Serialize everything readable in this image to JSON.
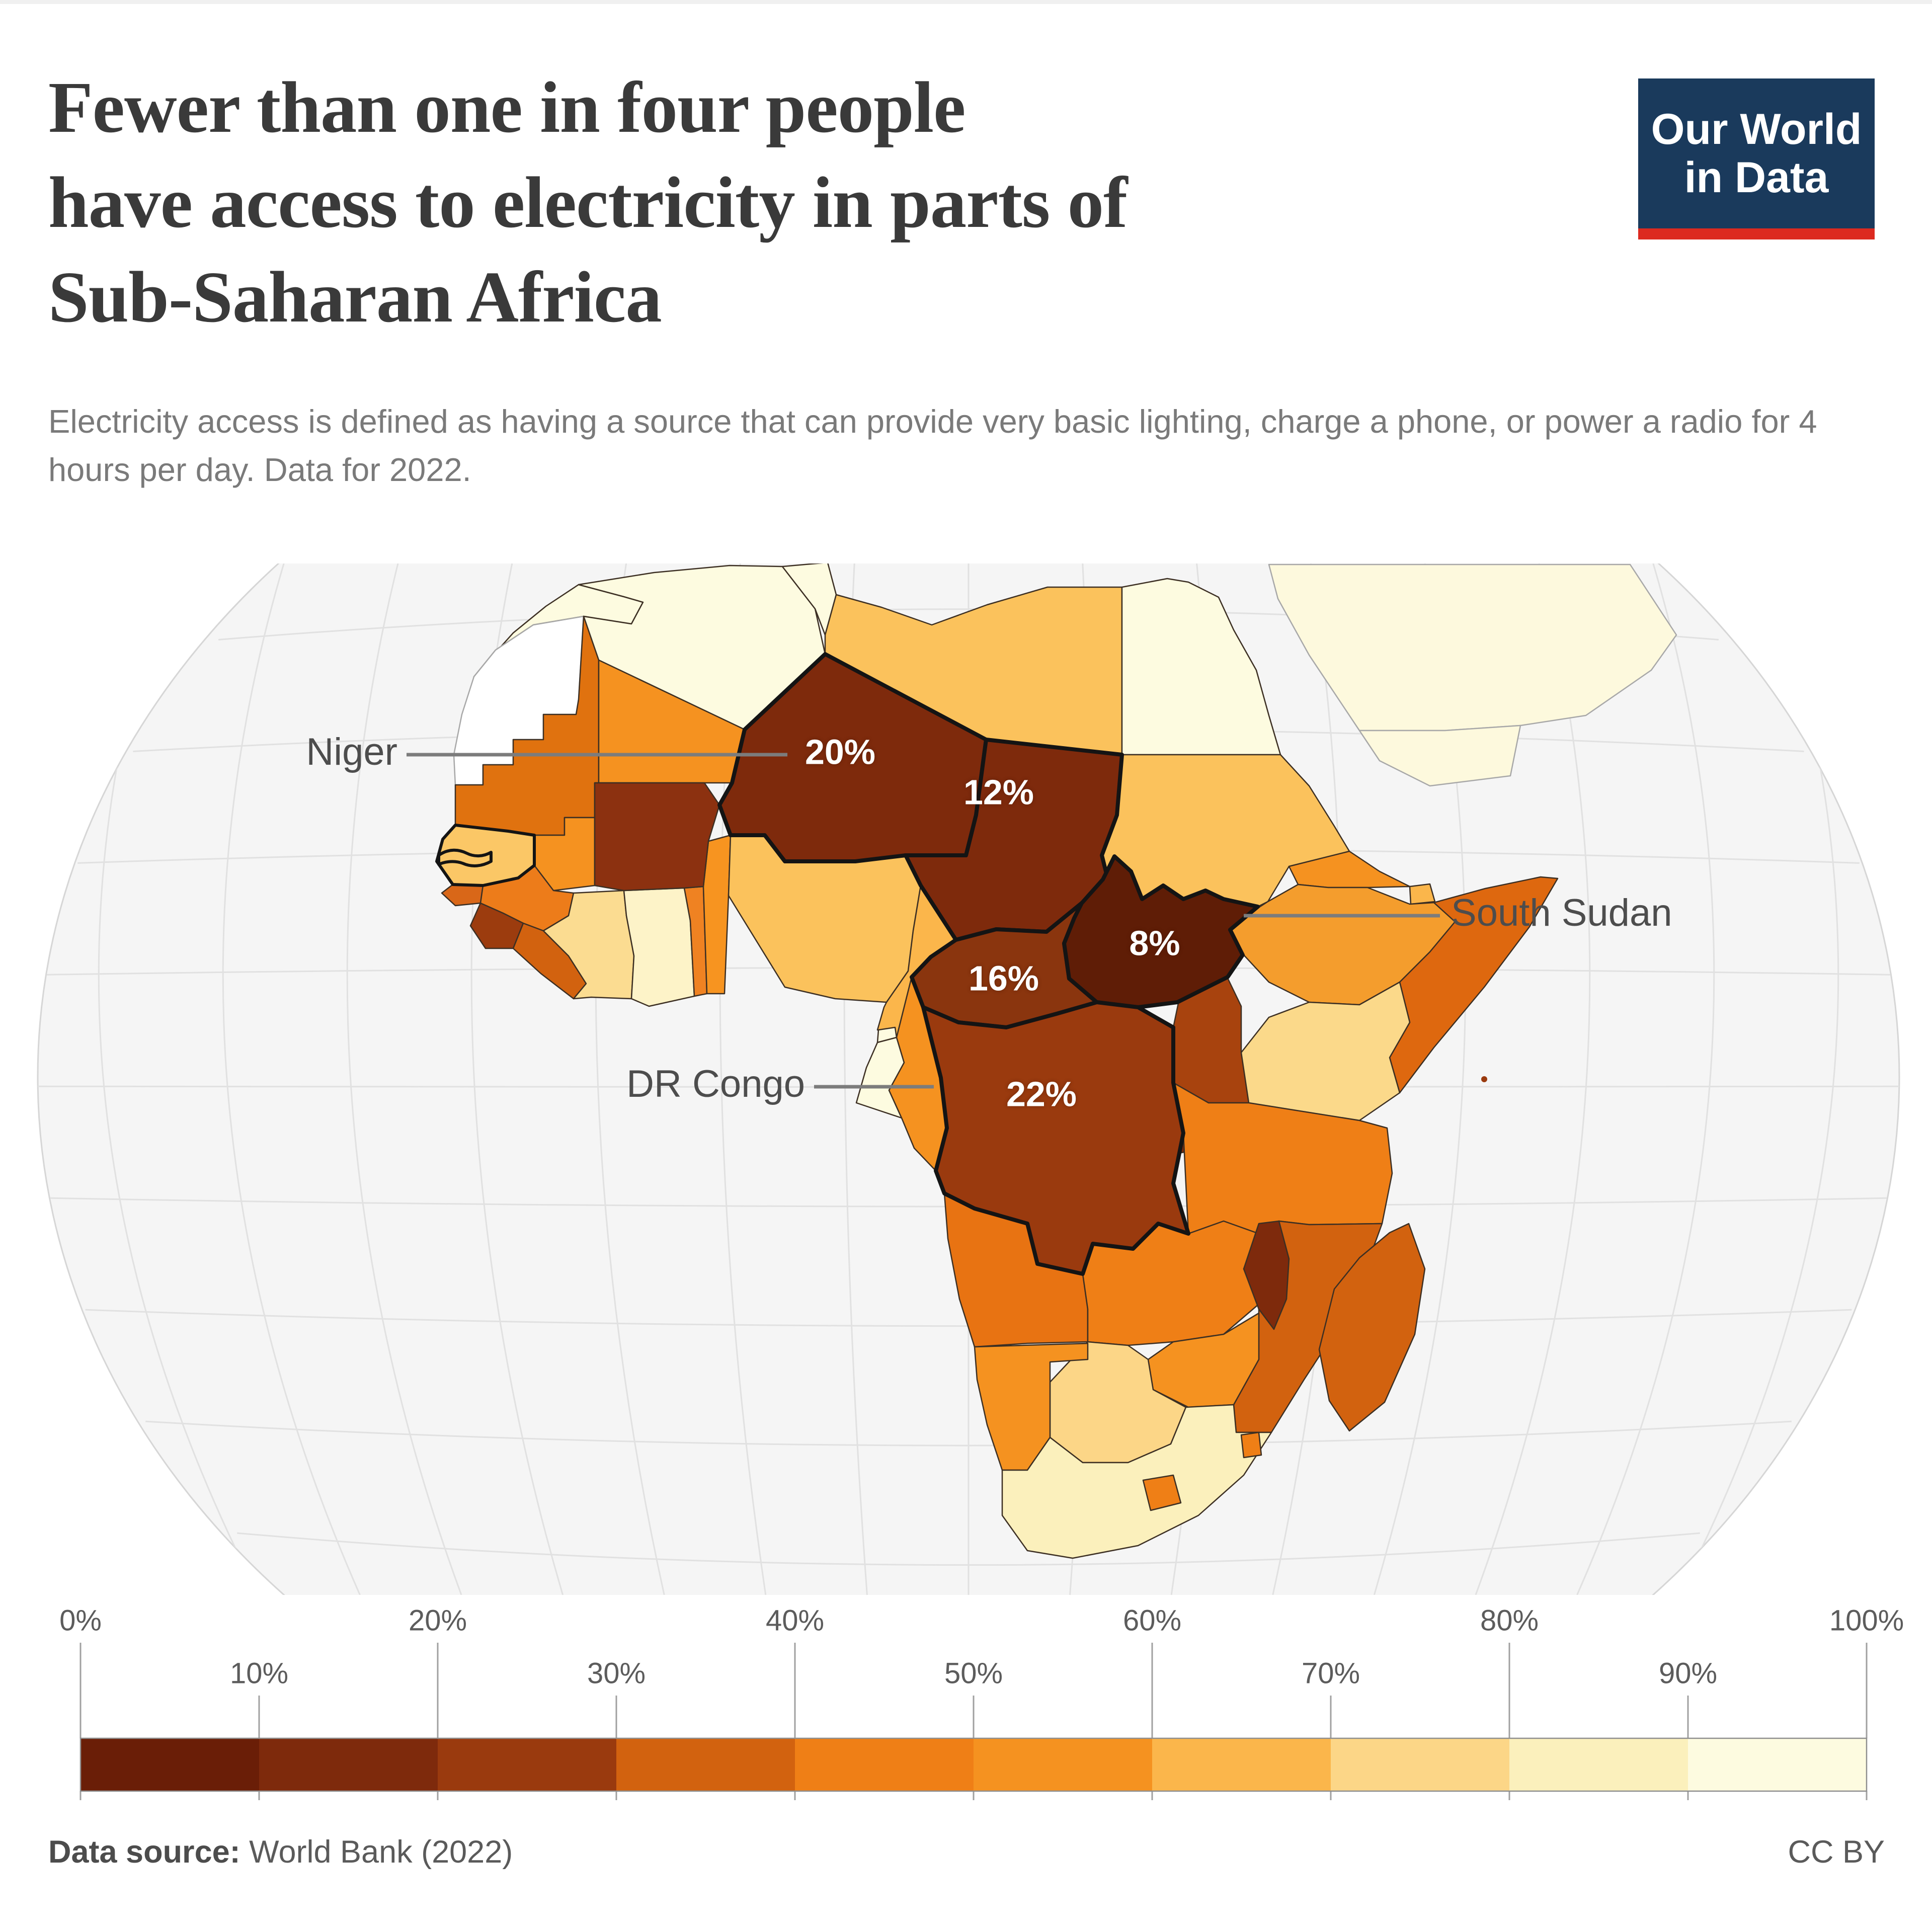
{
  "header": {
    "title_lines": [
      "Fewer than one in four people",
      "have access to electricity in parts of",
      "Sub-Saharan Africa"
    ],
    "subtitle": "Electricity access is defined as having a source that can provide very basic lighting, charge a phone, or power a radio for 4 hours per day. Data for 2022.",
    "logo": {
      "line1": "Our World",
      "line2": "in Data",
      "bg": "#1a3a5c",
      "accent": "#dc2a20"
    }
  },
  "chart_data": {
    "type": "choropleth_map",
    "region": "Africa",
    "metric": "Share of the population with access to electricity",
    "year": 2022,
    "unit": "%",
    "annotations": [
      {
        "country": "Niger",
        "value": "20%"
      },
      {
        "country": "Chad",
        "value": "12%"
      },
      {
        "country": "Central African Republic",
        "value": "16%"
      },
      {
        "country": "South Sudan",
        "value": "8%"
      },
      {
        "country": "DR Congo",
        "value": "22%"
      }
    ],
    "callouts": [
      {
        "label": "Niger"
      },
      {
        "label": "South Sudan"
      },
      {
        "label": "DR Congo"
      }
    ],
    "legend": {
      "ticks": [
        "0%",
        "10%",
        "20%",
        "30%",
        "40%",
        "50%",
        "60%",
        "70%",
        "80%",
        "90%",
        "100%"
      ],
      "colors": [
        "#6a1e07",
        "#7e2a0c",
        "#9a3a0e",
        "#d2620f",
        "#ef7f16",
        "#f59220",
        "#fbb64b",
        "#fcd687",
        "#fbf0bc",
        "#fdfbe0"
      ]
    },
    "map_colors": {
      "ocean": "#f5f5f5",
      "graticule": "#e1e1e1",
      "globe_edge": "#d6d6d6",
      "border": "#3c2f23",
      "highlight_border": "#141414",
      "no_data_border": "#a8a8a8",
      "callout_line": "#7c7c7c"
    },
    "countries": [
      {
        "id": "morocco",
        "name": "Morocco",
        "color": "#fdfbe0"
      },
      {
        "id": "western-sahara",
        "name": "Western Sahara",
        "color": "#ffffff",
        "no_data": true
      },
      {
        "id": "algeria",
        "name": "Algeria",
        "color": "#fdfbe0"
      },
      {
        "id": "tunisia",
        "name": "Tunisia",
        "color": "#fdfbe0"
      },
      {
        "id": "libya",
        "name": "Libya",
        "color": "#fbc25c"
      },
      {
        "id": "egypt",
        "name": "Egypt",
        "color": "#fdfbe0"
      },
      {
        "id": "mauritania",
        "name": "Mauritania",
        "color": "#e0720f"
      },
      {
        "id": "mali",
        "name": "Mali",
        "color": "#f59220"
      },
      {
        "id": "senegal",
        "name": "Senegal",
        "color": "#fbc766",
        "outlined": true
      },
      {
        "id": "gambia",
        "name": "Gambia",
        "color": "#fbc766",
        "outlined": true
      },
      {
        "id": "guinea-bissau",
        "name": "Guinea-Bissau",
        "color": "#d96718"
      },
      {
        "id": "guinea",
        "name": "Guinea",
        "color": "#ed7c1a"
      },
      {
        "id": "sierra-leone",
        "name": "Sierra Leone",
        "color": "#9c3c0e"
      },
      {
        "id": "liberia",
        "name": "Liberia",
        "color": "#d2620f"
      },
      {
        "id": "cote-divoire",
        "name": "Cote d'Ivoire",
        "color": "#fbdc91"
      },
      {
        "id": "ghana",
        "name": "Ghana",
        "color": "#fdf3c8"
      },
      {
        "id": "togo",
        "name": "Togo",
        "color": "#ef8222"
      },
      {
        "id": "benin",
        "name": "Benin",
        "color": "#f79420"
      },
      {
        "id": "burkina-faso",
        "name": "Burkina Faso",
        "color": "#8c3110"
      },
      {
        "id": "nigeria",
        "name": "Nigeria",
        "color": "#fbc25c"
      },
      {
        "id": "niger",
        "name": "Niger",
        "color": "#7e2a0c",
        "highlight": true,
        "value_label": "20%"
      },
      {
        "id": "chad",
        "name": "Chad",
        "color": "#7e2a0c",
        "highlight": true,
        "value_label": "12%"
      },
      {
        "id": "sudan",
        "name": "Sudan",
        "color": "#fbc25c"
      },
      {
        "id": "eritrea",
        "name": "Eritrea",
        "color": "#f59220"
      },
      {
        "id": "djibouti",
        "name": "Djibouti",
        "color": "#fbb64b"
      },
      {
        "id": "ethiopia",
        "name": "Ethiopia",
        "color": "#f49d2d"
      },
      {
        "id": "somalia",
        "name": "Somalia",
        "color": "#de680f"
      },
      {
        "id": "central-african-republic",
        "name": "Central African Republic",
        "color": "#8a350e",
        "highlight": true,
        "value_label": "16%"
      },
      {
        "id": "south-sudan",
        "name": "South Sudan",
        "color": "#5f1d06",
        "highlight": true,
        "value_label": "8%"
      },
      {
        "id": "cameroon",
        "name": "Cameroon",
        "color": "#fbb64b"
      },
      {
        "id": "equatorial-guinea",
        "name": "Equatorial Guinea",
        "color": "#fdfbe0"
      },
      {
        "id": "gabon",
        "name": "Gabon",
        "color": "#fdfbe0"
      },
      {
        "id": "congo",
        "name": "Congo",
        "color": "#f59220"
      },
      {
        "id": "dr-congo",
        "name": "Democratic Republic of Congo",
        "color": "#9a3a0e",
        "highlight": true,
        "value_label": "22%"
      },
      {
        "id": "uganda",
        "name": "Uganda",
        "color": "#a8430e"
      },
      {
        "id": "kenya",
        "name": "Kenya",
        "color": "#fbd98a"
      },
      {
        "id": "rwanda",
        "name": "Rwanda",
        "color": "#ef7f16"
      },
      {
        "id": "burundi",
        "name": "Burundi",
        "color": "#7e2a0c"
      },
      {
        "id": "tanzania",
        "name": "Tanzania",
        "color": "#ef7f16"
      },
      {
        "id": "angola",
        "name": "Angola",
        "color": "#e87312"
      },
      {
        "id": "zambia",
        "name": "Zambia",
        "color": "#ef7f16"
      },
      {
        "id": "malawi",
        "name": "Malawi",
        "color": "#7e2a0c"
      },
      {
        "id": "mozambique",
        "name": "Mozambique",
        "color": "#d2620f"
      },
      {
        "id": "zimbabwe",
        "name": "Zimbabwe",
        "color": "#f59220"
      },
      {
        "id": "botswana",
        "name": "Botswana",
        "color": "#fcd687"
      },
      {
        "id": "namibia",
        "name": "Namibia",
        "color": "#f59220"
      },
      {
        "id": "south-africa",
        "name": "South Africa",
        "color": "#fbf0bc"
      },
      {
        "id": "lesotho",
        "name": "Lesotho",
        "color": "#ef7f16"
      },
      {
        "id": "eswatini",
        "name": "Eswatini",
        "color": "#ef7f16"
      },
      {
        "id": "madagascar",
        "name": "Madagascar",
        "color": "#d2620f"
      },
      {
        "id": "saudi-arabia",
        "name": "Saudi Arabia",
        "color": "#fdf9dd",
        "nonfocus": true
      },
      {
        "id": "yemen",
        "name": "Yemen",
        "color": "#fdf9dd",
        "nonfocus": true
      }
    ]
  },
  "footer": {
    "source_label": "Data source:",
    "source_rest": " World Bank (2022)",
    "license": "CC BY"
  }
}
